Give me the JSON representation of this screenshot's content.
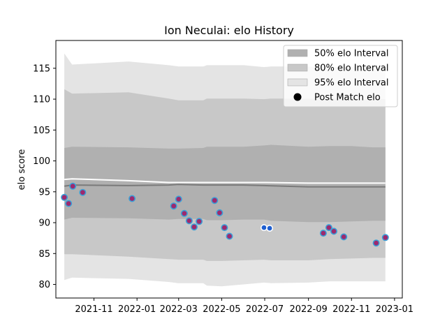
{
  "chart_data": {
    "type": "line",
    "title": "Ion Neculai: elo History",
    "xlabel": "",
    "ylabel": "elo score",
    "x_type": "date",
    "xlim": [
      "2021-09-08",
      "2023-01-12"
    ],
    "ylim": [
      77.8,
      119.5
    ],
    "xticks": [
      "2021-11-01",
      "2022-01-01",
      "2022-03-01",
      "2022-05-01",
      "2022-07-01",
      "2022-09-01",
      "2022-11-01",
      "2023-01-01"
    ],
    "xtick_labels": [
      "2021-11",
      "2022-01",
      "2022-03",
      "2022-05",
      "2022-07",
      "2022-09",
      "2022-11",
      "2023-01"
    ],
    "yticks": [
      80,
      85,
      90,
      95,
      100,
      105,
      110,
      115
    ],
    "ytick_labels": [
      "80",
      "85",
      "90",
      "95",
      "100",
      "105",
      "110",
      "115"
    ],
    "legend_position": "top-right",
    "legend": [
      {
        "label": "50% elo Interval",
        "kind": "band",
        "color": "#b0b0b0"
      },
      {
        "label": "80% elo Interval",
        "kind": "band",
        "color": "#c8c8c8"
      },
      {
        "label": "95% elo Interval",
        "kind": "band",
        "color": "#e4e4e4"
      },
      {
        "label": "Post Match elo",
        "kind": "marker",
        "color": "#000000"
      }
    ],
    "bands": [
      {
        "level": "95%",
        "color": "#e4e4e4",
        "x": [
          "2021-09-20",
          "2021-10-01",
          "2021-12-20",
          "2022-02-15",
          "2022-03-01",
          "2022-04-05",
          "2022-04-10",
          "2022-05-01",
          "2022-06-01",
          "2022-06-30",
          "2022-07-10",
          "2022-09-01",
          "2022-10-01",
          "2022-11-01",
          "2022-12-01",
          "2022-12-19"
        ],
        "lower": [
          80.7,
          81.1,
          80.9,
          80.4,
          80.2,
          80.2,
          79.8,
          79.7,
          80.0,
          80.3,
          80.2,
          80.3,
          80.5,
          80.5,
          80.5,
          80.5
        ],
        "upper": [
          117.4,
          115.6,
          116.1,
          115.5,
          115.3,
          115.3,
          115.5,
          115.5,
          115.5,
          115.2,
          115.3,
          115.3,
          115.2,
          115.2,
          115.1,
          115.1
        ]
      },
      {
        "level": "80%",
        "color": "#c8c8c8",
        "x": [
          "2021-09-20",
          "2021-10-01",
          "2021-12-20",
          "2022-02-15",
          "2022-03-01",
          "2022-04-05",
          "2022-04-10",
          "2022-05-01",
          "2022-06-01",
          "2022-06-30",
          "2022-07-10",
          "2022-09-01",
          "2022-10-01",
          "2022-11-01",
          "2022-12-01",
          "2022-12-19"
        ],
        "lower": [
          84.9,
          84.9,
          84.5,
          84.1,
          84.0,
          84.0,
          83.8,
          83.8,
          83.9,
          84.0,
          83.9,
          83.9,
          84.1,
          84.2,
          84.3,
          84.3
        ],
        "upper": [
          111.6,
          110.9,
          111.1,
          110.1,
          109.8,
          109.8,
          110.1,
          110.1,
          110.1,
          110.0,
          110.1,
          110.1,
          110.1,
          110.0,
          110.0,
          110.0
        ]
      },
      {
        "level": "50%",
        "color": "#b0b0b0",
        "x": [
          "2021-09-20",
          "2021-10-01",
          "2021-12-20",
          "2022-02-15",
          "2022-03-01",
          "2022-04-05",
          "2022-04-10",
          "2022-05-01",
          "2022-06-01",
          "2022-06-30",
          "2022-07-10",
          "2022-09-01",
          "2022-10-01",
          "2022-11-01",
          "2022-12-01",
          "2022-12-19"
        ],
        "lower": [
          90.5,
          90.8,
          90.7,
          90.5,
          90.6,
          90.6,
          90.4,
          90.4,
          90.5,
          90.5,
          90.3,
          90.1,
          90.1,
          90.2,
          90.3,
          90.3
        ],
        "upper": [
          102.1,
          102.3,
          102.2,
          102.0,
          102.0,
          102.1,
          102.3,
          102.3,
          102.3,
          102.5,
          102.6,
          102.3,
          102.4,
          102.4,
          102.2,
          102.2
        ]
      }
    ],
    "series": [
      {
        "kind": "line",
        "color": "#7a7a7a",
        "x": [
          "2021-09-20",
          "2021-10-01",
          "2021-12-20",
          "2022-02-15",
          "2022-03-01",
          "2022-04-05",
          "2022-05-01",
          "2022-06-01",
          "2022-07-01",
          "2022-09-01",
          "2022-10-01",
          "2022-11-01",
          "2022-12-01",
          "2022-12-19"
        ],
        "y": [
          95.9,
          96.1,
          96.0,
          96.1,
          96.2,
          96.1,
          96.1,
          96.1,
          96.0,
          95.8,
          95.8,
          95.8,
          95.8,
          95.8
        ]
      },
      {
        "kind": "line",
        "color": "#ffffff",
        "x": [
          "2021-09-20",
          "2021-10-01",
          "2021-12-20",
          "2022-02-15",
          "2022-03-01",
          "2022-04-05",
          "2022-05-01",
          "2022-06-01",
          "2022-07-01",
          "2022-09-01",
          "2022-10-01",
          "2022-11-01",
          "2022-12-01",
          "2022-12-19"
        ],
        "y": [
          97.0,
          97.1,
          96.8,
          96.5,
          96.5,
          96.5,
          96.5,
          96.5,
          96.5,
          96.4,
          96.4,
          96.4,
          96.4,
          96.4
        ]
      },
      {
        "kind": "scatter",
        "name": "Post Match elo",
        "color": "#9d2a6e",
        "edge": "#3aa0d8",
        "x": [
          "2021-09-20",
          "2021-09-26",
          "2021-10-02",
          "2021-10-16",
          "2021-12-25",
          "2022-02-22",
          "2022-03-01",
          "2022-03-09",
          "2022-03-16",
          "2022-03-23",
          "2022-03-30",
          "2022-04-21",
          "2022-04-28",
          "2022-05-05",
          "2022-05-12",
          "2022-09-22",
          "2022-09-30",
          "2022-10-07",
          "2022-10-21",
          "2022-12-06",
          "2022-12-19"
        ],
        "y": [
          94.1,
          93.1,
          95.9,
          94.9,
          93.9,
          92.7,
          93.8,
          91.5,
          90.3,
          89.3,
          90.2,
          93.6,
          91.6,
          89.2,
          87.8,
          88.3,
          89.2,
          88.6,
          87.7,
          86.7,
          87.6
        ]
      },
      {
        "kind": "scatter",
        "name": "Post Match elo",
        "color": "#1f5fd0",
        "edge": "#ffffff",
        "x": [
          "2022-06-30",
          "2022-07-08"
        ],
        "y": [
          89.2,
          89.1
        ]
      }
    ]
  }
}
